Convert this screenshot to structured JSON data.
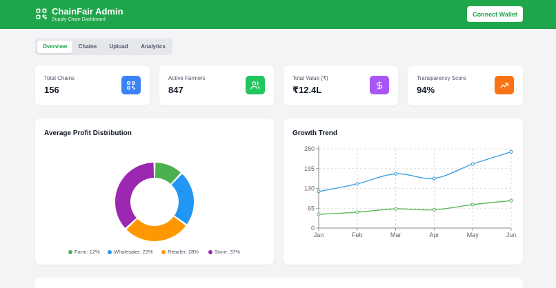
{
  "header": {
    "title": "ChainFair Admin",
    "subtitle": "Supply Chain Dashboard",
    "connect_label": "Connect Wallet"
  },
  "tabs": [
    {
      "label": "Overview",
      "active": true
    },
    {
      "label": "Chains",
      "active": false
    },
    {
      "label": "Upload",
      "active": false
    },
    {
      "label": "Analytics",
      "active": false
    }
  ],
  "stats": [
    {
      "label": "Total Chains",
      "value": "156",
      "icon": "qr-code-icon",
      "color": "#3b82f6"
    },
    {
      "label": "Active Farmers",
      "value": "847",
      "icon": "users-icon",
      "color": "#22c55e"
    },
    {
      "label": "Total Value (₹)",
      "value": "₹12.4L",
      "icon": "dollar-icon",
      "color": "#a855f7"
    },
    {
      "label": "Transparency Score",
      "value": "94%",
      "icon": "trending-up-icon",
      "color": "#f97316"
    }
  ],
  "panels": {
    "donut_title": "Average Profit Distribution",
    "line_title": "Growth Trend"
  },
  "chart_data": [
    {
      "type": "pie",
      "title": "Average Profit Distribution",
      "categories": [
        "Farm",
        "Wholesaler",
        "Retailer",
        "Store"
      ],
      "values": [
        12,
        23,
        28,
        37
      ],
      "labels": [
        "Farm: 12%",
        "Wholesaler: 23%",
        "Retailer: 28%",
        "Store: 37%"
      ],
      "colors": [
        "#4caf50",
        "#2196f3",
        "#ff9800",
        "#9c27b0"
      ],
      "legend": "bottom"
    },
    {
      "type": "line",
      "title": "Growth Trend",
      "categories": [
        "Jan",
        "Feb",
        "Mar",
        "Apr",
        "May",
        "Jun"
      ],
      "series": [
        {
          "values": [
            120,
            145,
            178,
            163,
            210,
            250
          ],
          "color": "#3b9ddd"
        },
        {
          "values": [
            45,
            52,
            63,
            60,
            77,
            90
          ],
          "color": "#5cb85c"
        }
      ],
      "yticks": [
        "0",
        "65",
        "130",
        "195",
        "260"
      ],
      "ylim": [
        0,
        260
      ],
      "grid": true
    }
  ]
}
